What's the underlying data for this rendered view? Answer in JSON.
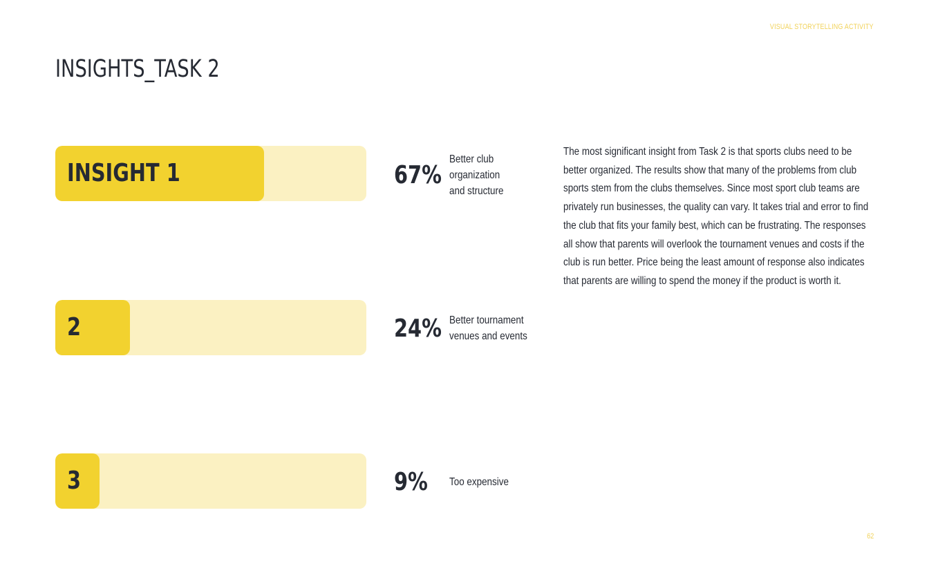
{
  "header": {
    "label": "VISUAL STORYTELLING ACTIVITY",
    "title": "INSIGHTS_TASK 2"
  },
  "chart_data": {
    "type": "bar",
    "orientation": "horizontal",
    "categories": [
      "INSIGHT 1",
      "2",
      "3"
    ],
    "values": [
      67,
      24,
      9
    ],
    "value_labels": [
      "67%",
      "24%",
      "9%"
    ],
    "descriptions": [
      "Better club organization and structure",
      "Better tournament venues and events",
      "Too expensive"
    ],
    "unit": "%",
    "xlim": [
      0,
      100
    ],
    "colors": {
      "fill": "#f2d22f",
      "track": "#fbf1c2",
      "text": "#262a33"
    }
  },
  "body_text": "The most significant insight from Task 2 is that sports clubs need to be better organized. The results show that many of the problems from club sports stem from the clubs themselves. Since most sport club teams are privately run businesses, the quality can vary. It takes trial and error to find the club that fits your family best, which can be frustrating. The responses all show that parents will overlook the tournament venues and costs if the club is run better. Price being the least amount of response also indicates that parents are willing to spend the money if the product is worth it.",
  "footer": {
    "page_number": "62"
  }
}
